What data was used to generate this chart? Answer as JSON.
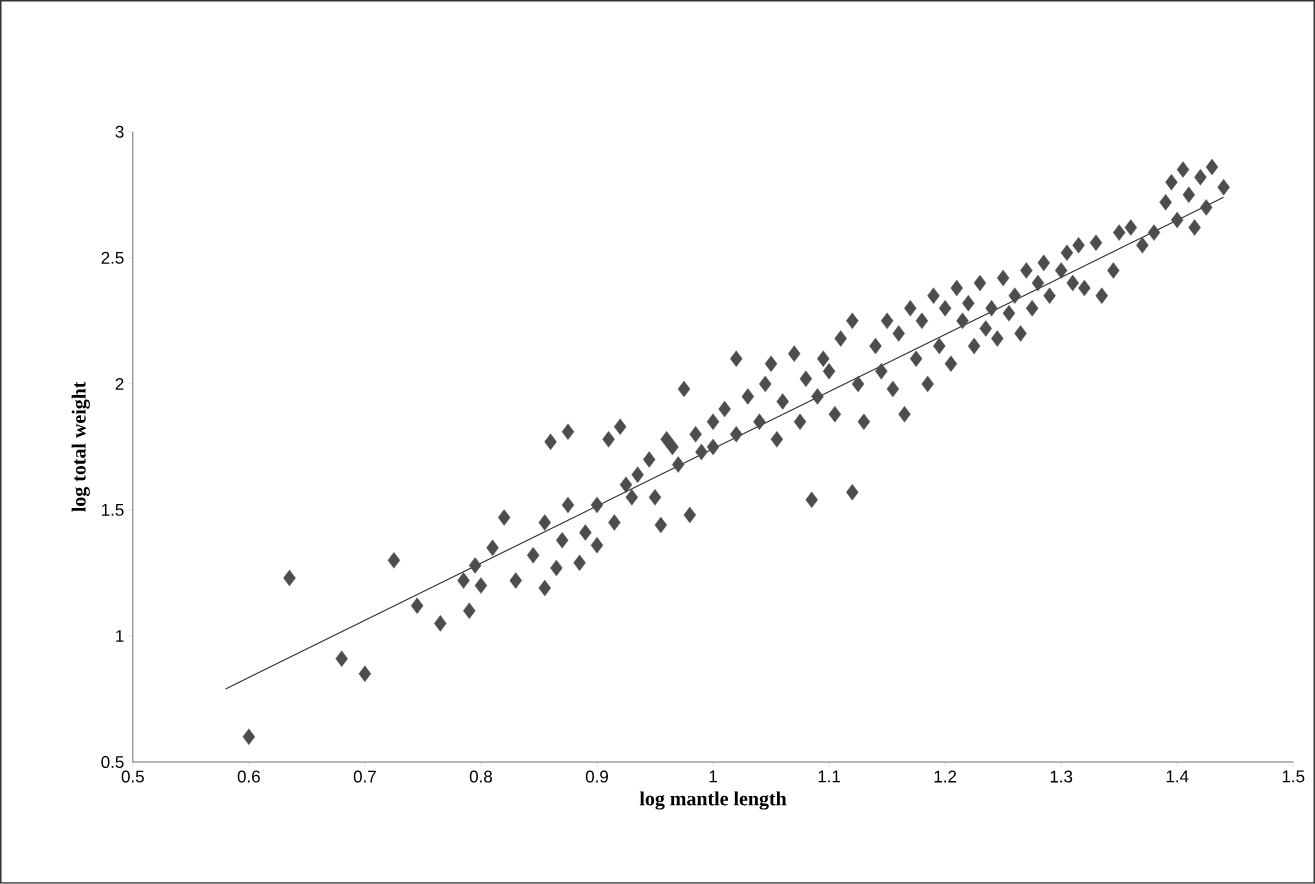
{
  "chart_data": {
    "type": "scatter",
    "xlabel": "log mantle length",
    "ylabel": "log total weight",
    "xlim": [
      0.5,
      1.5
    ],
    "ylim": [
      0.5,
      3
    ],
    "xticks": [
      0.5,
      0.6,
      0.7,
      0.8,
      0.9,
      1,
      1.1,
      1.2,
      1.3,
      1.4,
      1.5
    ],
    "yticks": [
      0.5,
      1,
      1.5,
      2,
      2.5,
      3
    ],
    "series": [
      {
        "marker": "diamond",
        "color": "#4d4d4d",
        "x": [
          0.6,
          0.635,
          0.68,
          0.7,
          0.725,
          0.745,
          0.765,
          0.79,
          0.785,
          0.795,
          0.81,
          0.82,
          0.8,
          0.83,
          0.845,
          0.855,
          0.855,
          0.86,
          0.875,
          0.865,
          0.87,
          0.875,
          0.885,
          0.89,
          0.9,
          0.9,
          0.91,
          0.915,
          0.92,
          0.925,
          0.93,
          0.935,
          0.945,
          0.95,
          0.955,
          0.96,
          0.965,
          0.97,
          0.975,
          0.98,
          0.985,
          0.99,
          1.0,
          1.0,
          1.01,
          1.02,
          1.02,
          1.03,
          1.04,
          1.045,
          1.05,
          1.055,
          1.06,
          1.07,
          1.075,
          1.08,
          1.085,
          1.09,
          1.095,
          1.1,
          1.105,
          1.11,
          1.12,
          1.12,
          1.125,
          1.13,
          1.14,
          1.145,
          1.15,
          1.155,
          1.16,
          1.165,
          1.17,
          1.175,
          1.18,
          1.185,
          1.19,
          1.195,
          1.2,
          1.205,
          1.21,
          1.215,
          1.22,
          1.225,
          1.23,
          1.235,
          1.24,
          1.245,
          1.25,
          1.255,
          1.26,
          1.265,
          1.27,
          1.275,
          1.28,
          1.285,
          1.29,
          1.3,
          1.305,
          1.31,
          1.315,
          1.32,
          1.33,
          1.335,
          1.345,
          1.35,
          1.36,
          1.37,
          1.38,
          1.39,
          1.395,
          1.4,
          1.405,
          1.41,
          1.415,
          1.42,
          1.425,
          1.43,
          1.44
        ],
        "values": [
          0.6,
          1.23,
          0.91,
          0.85,
          1.3,
          1.12,
          1.05,
          1.1,
          1.22,
          1.28,
          1.35,
          1.47,
          1.2,
          1.22,
          1.32,
          1.45,
          1.19,
          1.77,
          1.81,
          1.27,
          1.38,
          1.52,
          1.29,
          1.41,
          1.36,
          1.52,
          1.78,
          1.45,
          1.83,
          1.6,
          1.55,
          1.64,
          1.7,
          1.55,
          1.44,
          1.78,
          1.75,
          1.68,
          1.98,
          1.48,
          1.8,
          1.73,
          1.75,
          1.85,
          1.9,
          2.1,
          1.8,
          1.95,
          1.85,
          2.0,
          2.08,
          1.78,
          1.93,
          2.12,
          1.85,
          2.02,
          1.54,
          1.95,
          2.1,
          2.05,
          1.88,
          2.18,
          1.57,
          2.25,
          2.0,
          1.85,
          2.15,
          2.05,
          2.25,
          1.98,
          2.2,
          1.88,
          2.3,
          2.1,
          2.25,
          2.0,
          2.35,
          2.15,
          2.3,
          2.08,
          2.38,
          2.25,
          2.32,
          2.15,
          2.4,
          2.22,
          2.3,
          2.18,
          2.42,
          2.28,
          2.35,
          2.2,
          2.45,
          2.3,
          2.4,
          2.48,
          2.35,
          2.45,
          2.52,
          2.4,
          2.55,
          2.38,
          2.56,
          2.35,
          2.45,
          2.6,
          2.62,
          2.55,
          2.6,
          2.72,
          2.8,
          2.65,
          2.85,
          2.75,
          2.62,
          2.82,
          2.7,
          2.86,
          2.78
        ]
      },
      {
        "type": "line",
        "marker": "none",
        "color": "#303030",
        "x": [
          0.58,
          1.44
        ],
        "values": [
          0.79,
          2.74
        ]
      }
    ]
  }
}
